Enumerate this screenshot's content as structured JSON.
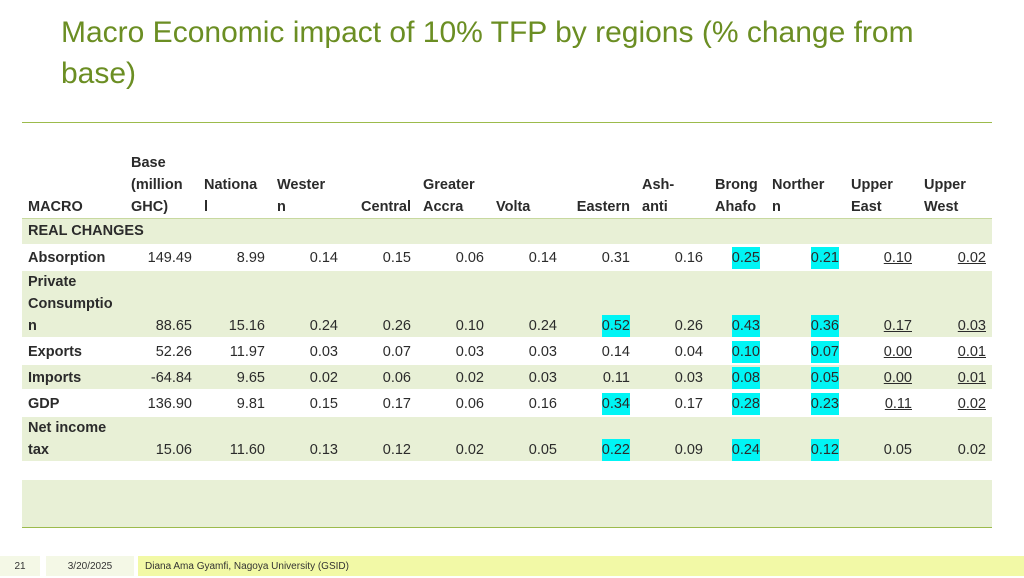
{
  "title": "Macro Economic impact of 10% TFP by regions (% change from base)",
  "table": {
    "headers": [
      [
        "MACRO"
      ],
      [
        "Base",
        "(million",
        "GHC)"
      ],
      [
        "Nationa",
        "l"
      ],
      [
        "Wester",
        "n"
      ],
      [
        "Central"
      ],
      [
        "Greater",
        "Accra"
      ],
      [
        "Volta"
      ],
      [
        "Eastern"
      ],
      [
        "Ash-",
        "anti"
      ],
      [
        "Brong",
        "Ahafo"
      ],
      [
        "Norther",
        "n"
      ],
      [
        "Upper",
        "East"
      ],
      [
        "Upper",
        "West"
      ]
    ],
    "section_label": "REAL CHANGES",
    "rows": [
      {
        "label": [
          "Absorption"
        ],
        "values": [
          "149.49",
          "8.99",
          "0.14",
          "0.15",
          "0.06",
          "0.14",
          "0.31",
          "0.16",
          "0.25",
          "0.21",
          "0.10",
          "0.02"
        ]
      },
      {
        "label": [
          "Private",
          "Consumptio",
          "n"
        ],
        "values": [
          "88.65",
          "15.16",
          "0.24",
          "0.26",
          "0.10",
          "0.24",
          "0.52",
          "0.26",
          "0.43",
          "0.36",
          "0.17",
          "0.03"
        ]
      },
      {
        "label": [
          "Exports"
        ],
        "values": [
          "52.26",
          "11.97",
          "0.03",
          "0.07",
          "0.03",
          "0.03",
          "0.14",
          "0.04",
          "0.10",
          "0.07",
          "0.00",
          "0.01"
        ]
      },
      {
        "label": [
          "Imports"
        ],
        "values": [
          "-64.84",
          "9.65",
          "0.02",
          "0.06",
          "0.02",
          "0.03",
          "0.11",
          "0.03",
          "0.08",
          "0.05",
          "0.00",
          "0.01"
        ]
      },
      {
        "label": [
          "GDP"
        ],
        "values": [
          "136.90",
          "9.81",
          "0.15",
          "0.17",
          "0.06",
          "0.16",
          "0.34",
          "0.17",
          "0.28",
          "0.23",
          "0.11",
          "0.02"
        ]
      },
      {
        "label": [
          "Net income",
          "tax"
        ],
        "values": [
          "15.06",
          "11.60",
          "0.13",
          "0.12",
          "0.02",
          "0.05",
          "0.22",
          "0.09",
          "0.24",
          "0.12",
          "0.05",
          "0.02"
        ]
      }
    ],
    "highlight_color": "#00f5f5",
    "band_color": "#e8f0d6"
  },
  "footer": {
    "page": "21",
    "date": "3/20/2025",
    "author": "Diana Ama Gyamfi, Nagoya University (GSID)"
  }
}
